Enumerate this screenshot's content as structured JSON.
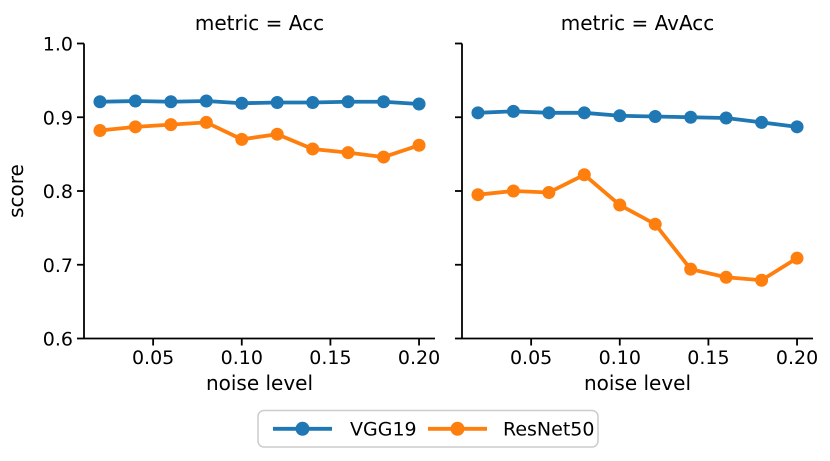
{
  "figure": {
    "ylabel": "score",
    "background": "#ffffff",
    "axis_color": "#000000",
    "legend": {
      "position": "bottom-center",
      "border_color": "#cccccc",
      "fill": "#ffffff",
      "items": [
        {
          "label": "VGG19",
          "color": "#1f77b4"
        },
        {
          "label": "ResNet50",
          "color": "#ff7f0e"
        }
      ]
    }
  },
  "chart_data": [
    {
      "type": "line",
      "title": "metric = Acc",
      "xlabel": "noise level",
      "ylabel": "score",
      "grid": false,
      "xlim": [
        0.011,
        0.209
      ],
      "ylim": [
        0.6,
        1.0
      ],
      "xticks": [
        0.05,
        0.1,
        0.15,
        0.2
      ],
      "yticks": [
        0.6,
        0.7,
        0.8,
        0.9,
        1.0
      ],
      "show_y_tick_labels": true,
      "x": [
        0.02,
        0.04,
        0.06,
        0.08,
        0.1,
        0.12,
        0.14,
        0.16,
        0.18,
        0.2
      ],
      "series": [
        {
          "name": "VGG19",
          "color": "#1f77b4",
          "values": [
            0.921,
            0.922,
            0.921,
            0.922,
            0.919,
            0.92,
            0.92,
            0.921,
            0.921,
            0.918
          ]
        },
        {
          "name": "ResNet50",
          "color": "#ff7f0e",
          "values": [
            0.882,
            0.887,
            0.89,
            0.893,
            0.87,
            0.877,
            0.857,
            0.852,
            0.846,
            0.862
          ]
        }
      ]
    },
    {
      "type": "line",
      "title": "metric = AvAcc",
      "xlabel": "noise level",
      "ylabel": "score",
      "grid": false,
      "xlim": [
        0.011,
        0.209
      ],
      "ylim": [
        0.6,
        1.0
      ],
      "xticks": [
        0.05,
        0.1,
        0.15,
        0.2
      ],
      "yticks": [
        0.6,
        0.7,
        0.8,
        0.9,
        1.0
      ],
      "show_y_tick_labels": false,
      "x": [
        0.02,
        0.04,
        0.06,
        0.08,
        0.1,
        0.12,
        0.14,
        0.16,
        0.18,
        0.2
      ],
      "series": [
        {
          "name": "VGG19",
          "color": "#1f77b4",
          "values": [
            0.906,
            0.908,
            0.906,
            0.906,
            0.902,
            0.901,
            0.9,
            0.899,
            0.893,
            0.887
          ]
        },
        {
          "name": "ResNet50",
          "color": "#ff7f0e",
          "values": [
            0.795,
            0.8,
            0.798,
            0.822,
            0.781,
            0.755,
            0.694,
            0.683,
            0.679,
            0.709
          ]
        }
      ]
    }
  ]
}
